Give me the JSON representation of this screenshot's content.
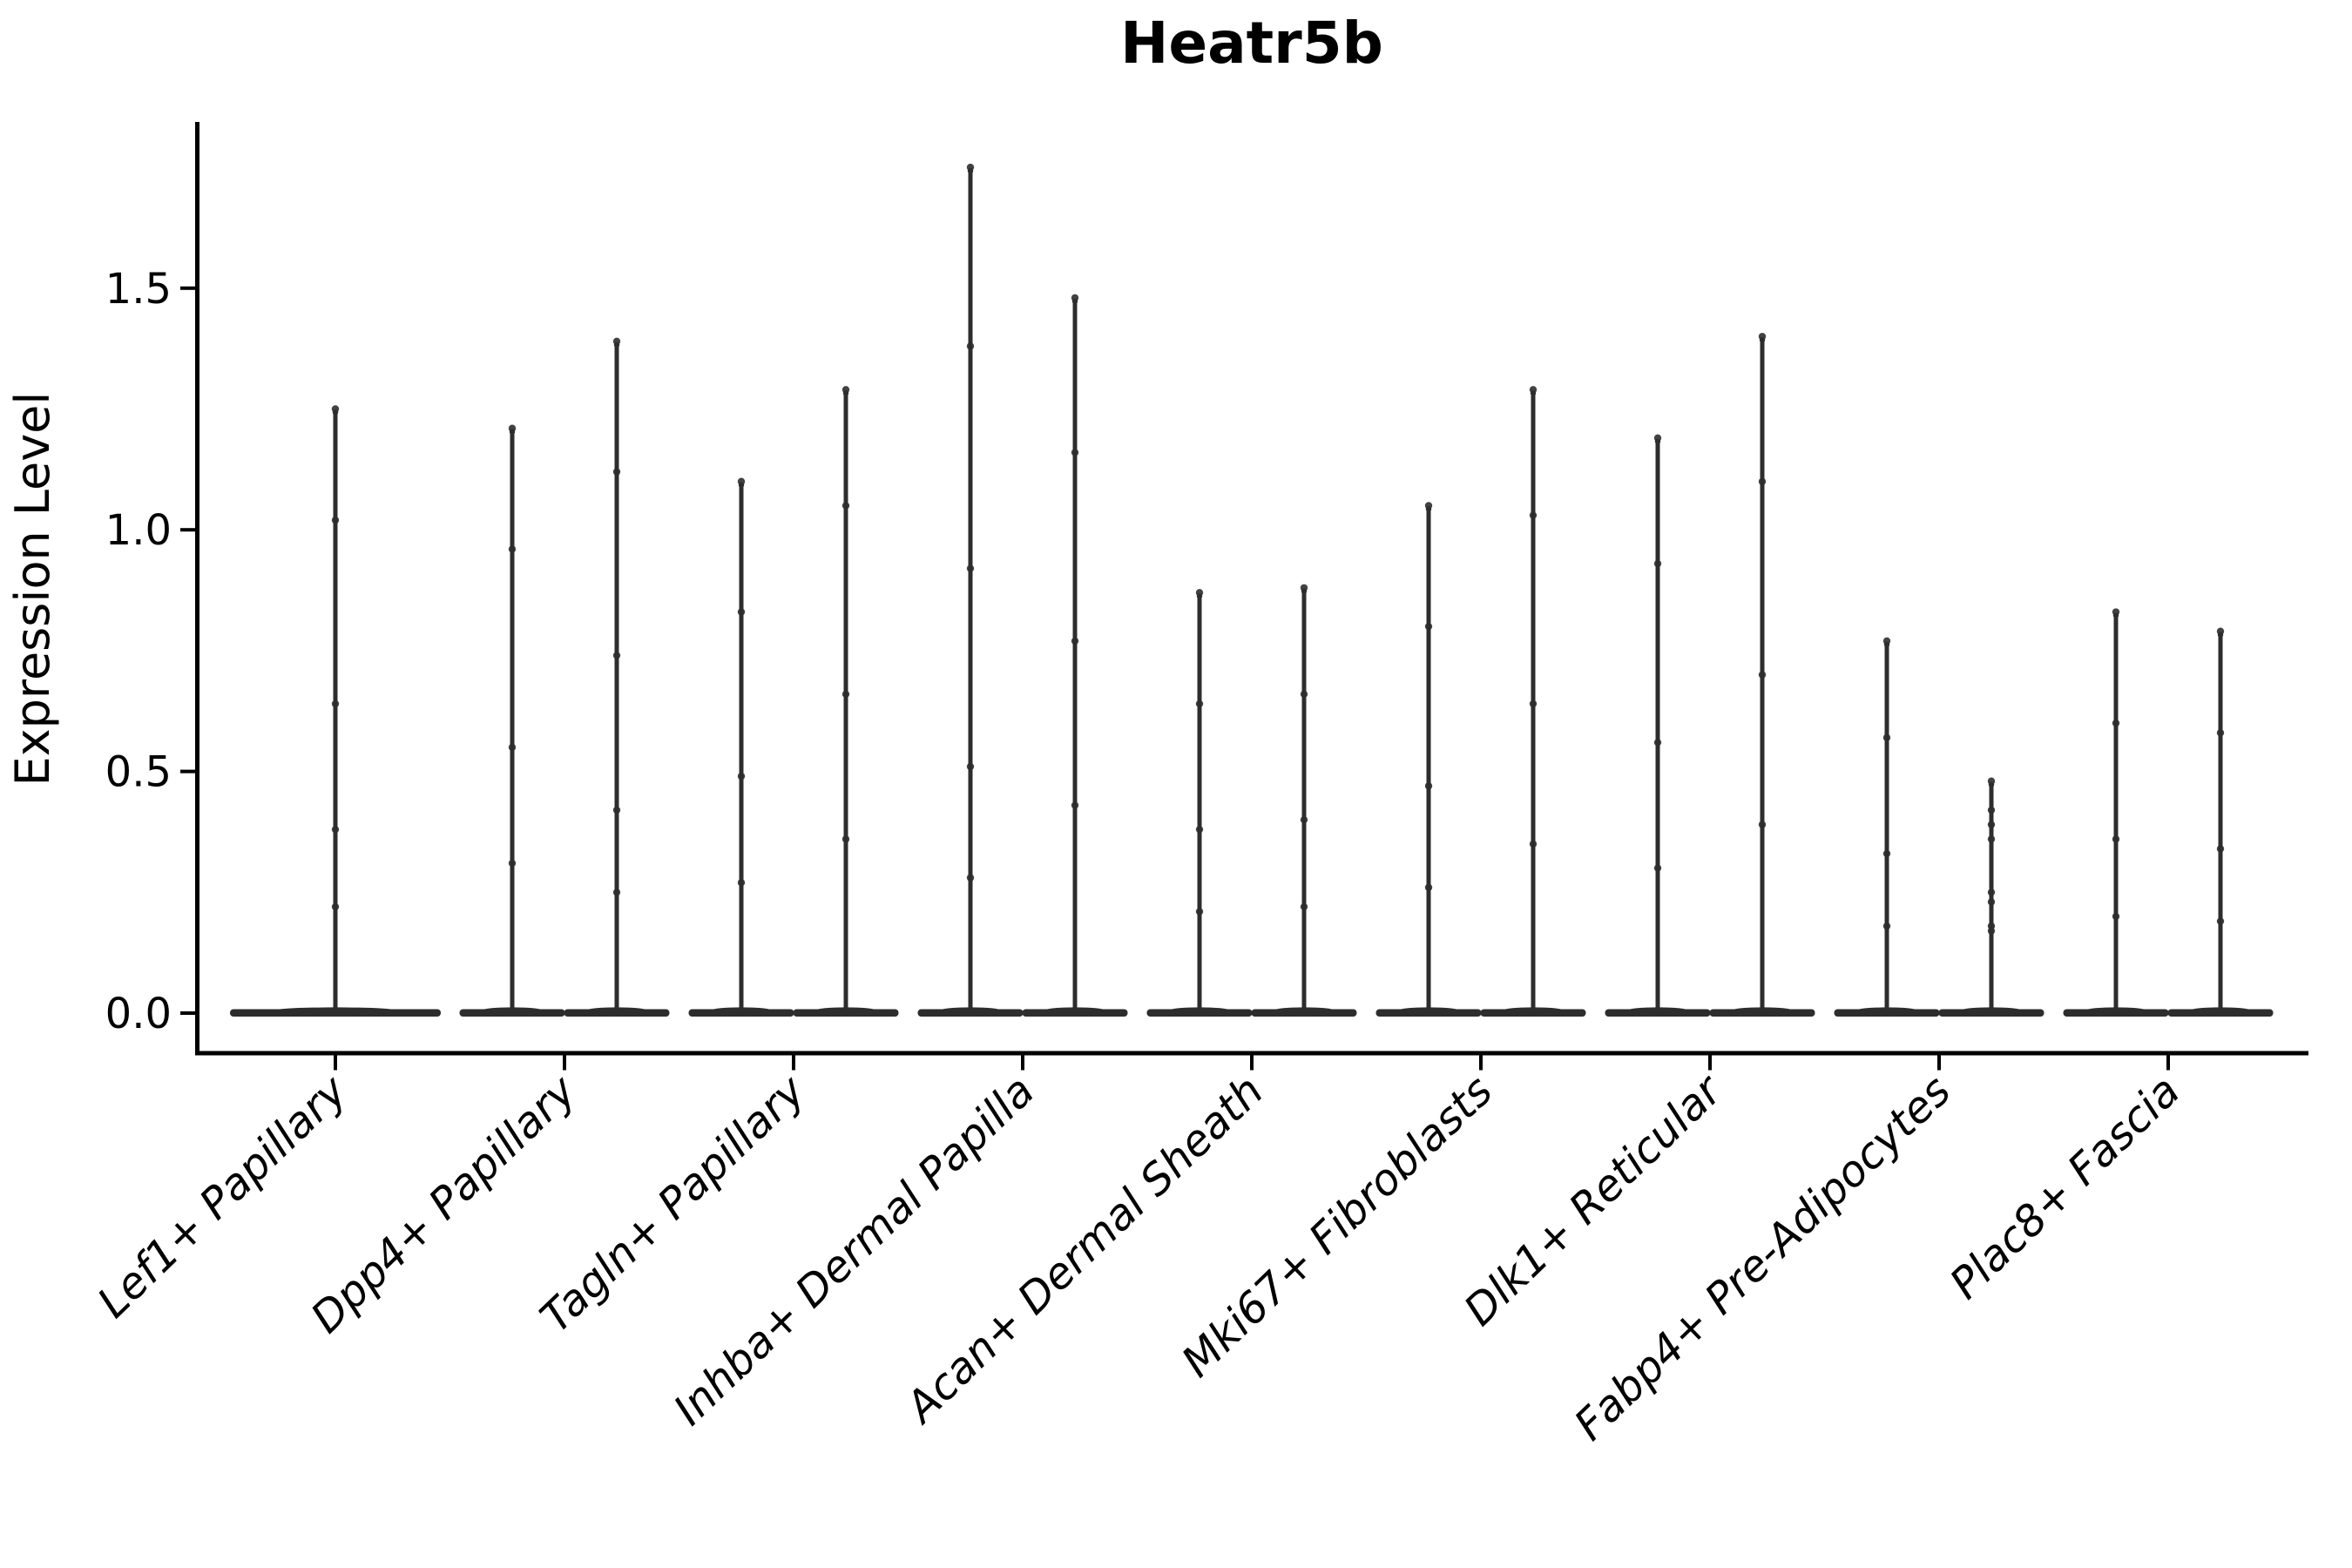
{
  "title": "Heatr5b",
  "axes": {
    "ylabel": "Expression Level",
    "ytick_labels": [
      "0.0",
      "0.5",
      "1.0",
      "1.5"
    ],
    "ytick_values": [
      0.0,
      0.5,
      1.0,
      1.5
    ]
  },
  "colors": {
    "violin": "#2d2d2d",
    "axis": "#000000",
    "background": "#ffffff"
  },
  "chart_data": {
    "type": "violin",
    "title": "Heatr5b",
    "xlabel": "",
    "ylabel": "Expression Level",
    "ylim": [
      -0.09,
      1.85
    ],
    "yticks": [
      0.0,
      0.5,
      1.0,
      1.5
    ],
    "grid": false,
    "legend": "none",
    "description": "Single-cell expression violin plot; each violin is flat at 0 with a thin density spike rising to the maximum expression value. First category has one wide violin; all others contain two narrow side-by-side violins.",
    "categories": [
      "Lef1+ Papillary",
      "Dpp4+ Papillary",
      "Tagln+ Papillary",
      "Inhba+ Dermal Papilla",
      "Acan+ Dermal Sheath",
      "Mki67+ Fibroblasts",
      "Dlk1+ Reticular",
      "Fabp4+ Pre-Adipocytes",
      "Plac8+ Fascia"
    ],
    "violins": [
      {
        "label": "Lef1+ Papillary",
        "groups": [
          {
            "max": 1.25,
            "points": [
              1.25,
              1.02,
              0.64,
              0.38,
              0.22
            ]
          }
        ]
      },
      {
        "label": "Dpp4+ Papillary",
        "groups": [
          {
            "max": 1.21,
            "points": [
              1.21,
              0.96,
              0.55,
              0.31
            ]
          },
          {
            "max": 1.39,
            "points": [
              1.39,
              1.12,
              0.74,
              0.42,
              0.25
            ]
          }
        ]
      },
      {
        "label": "Tagln+ Papillary",
        "groups": [
          {
            "max": 1.1,
            "points": [
              1.1,
              0.83,
              0.49,
              0.27
            ]
          },
          {
            "max": 1.29,
            "points": [
              1.29,
              1.05,
              0.66,
              0.36
            ]
          }
        ]
      },
      {
        "label": "Inhba+ Dermal Papilla",
        "groups": [
          {
            "max": 1.75,
            "points": [
              1.75,
              1.38,
              0.92,
              0.51,
              0.28
            ]
          },
          {
            "max": 1.48,
            "points": [
              1.48,
              1.16,
              0.77,
              0.43
            ]
          }
        ]
      },
      {
        "label": "Acan+ Dermal Sheath",
        "groups": [
          {
            "max": 0.87,
            "points": [
              0.87,
              0.64,
              0.38,
              0.21
            ]
          },
          {
            "max": 0.88,
            "points": [
              0.88,
              0.66,
              0.4,
              0.22
            ]
          }
        ]
      },
      {
        "label": "Mki67+ Fibroblasts",
        "groups": [
          {
            "max": 1.05,
            "points": [
              1.05,
              0.8,
              0.47,
              0.26
            ]
          },
          {
            "max": 1.29,
            "points": [
              1.29,
              1.03,
              0.64,
              0.35
            ]
          }
        ]
      },
      {
        "label": "Dlk1+ Reticular",
        "groups": [
          {
            "max": 1.19,
            "points": [
              1.19,
              0.93,
              0.56,
              0.3
            ]
          },
          {
            "max": 1.4,
            "points": [
              1.4,
              1.1,
              0.7,
              0.39
            ]
          }
        ]
      },
      {
        "label": "Fabp4+ Pre-Adipocytes",
        "groups": [
          {
            "max": 0.77,
            "points": [
              0.77,
              0.57,
              0.33,
              0.18
            ]
          },
          {
            "max": 0.48,
            "points": [
              0.48,
              0.42,
              0.39,
              0.36,
              0.25,
              0.23,
              0.18,
              0.17
            ]
          }
        ]
      },
      {
        "label": "Plac8+ Fascia",
        "groups": [
          {
            "max": 0.83,
            "points": [
              0.83,
              0.6,
              0.36,
              0.2
            ]
          },
          {
            "max": 0.79,
            "points": [
              0.79,
              0.58,
              0.34,
              0.19
            ]
          }
        ]
      }
    ]
  }
}
